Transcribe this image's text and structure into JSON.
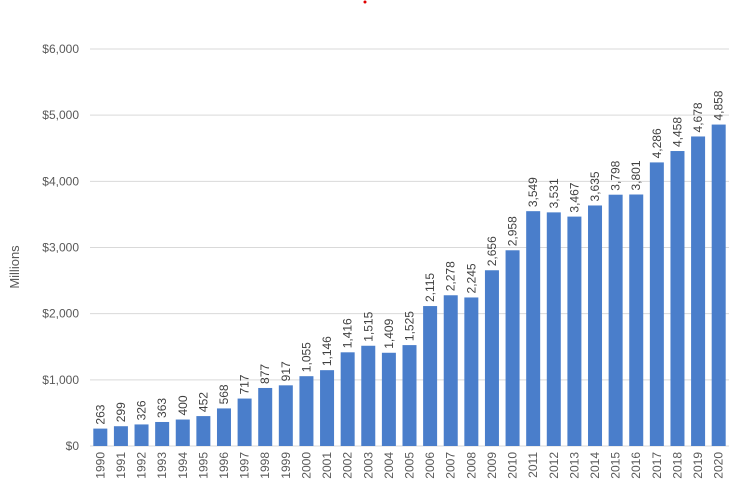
{
  "chart_data": {
    "type": "bar",
    "title": "",
    "xlabel": "",
    "ylabel": "Millions",
    "ylim": [
      0,
      6000
    ],
    "yticks": [
      {
        "value": 0,
        "label": "$0"
      },
      {
        "value": 1000,
        "label": "$1,000"
      },
      {
        "value": 2000,
        "label": "$2,000"
      },
      {
        "value": 3000,
        "label": "$3,000"
      },
      {
        "value": 4000,
        "label": "$4,000"
      },
      {
        "value": 5000,
        "label": "$5,000"
      },
      {
        "value": 6000,
        "label": "$6,000"
      }
    ],
    "grid": true,
    "legend": "none",
    "bar_color": "#4a7ecb",
    "categories": [
      "1990",
      "1991",
      "1992",
      "1993",
      "1994",
      "1995",
      "1996",
      "1997",
      "1998",
      "1999",
      "2000",
      "2001",
      "2002",
      "2003",
      "2004",
      "2005",
      "2006",
      "2007",
      "2008",
      "2009",
      "2010",
      "2011",
      "2012",
      "2013",
      "2014",
      "2015",
      "2016",
      "2017",
      "2018",
      "2019",
      "2020"
    ],
    "values": [
      263,
      299,
      326,
      363,
      400,
      452,
      568,
      717,
      877,
      917,
      1055,
      1146,
      1416,
      1515,
      1409,
      1525,
      2115,
      2278,
      2245,
      2656,
      2958,
      3549,
      3531,
      3467,
      3635,
      3798,
      3801,
      4286,
      4458,
      4678,
      4858
    ],
    "value_labels": [
      "263",
      "299",
      "326",
      "363",
      "400",
      "452",
      "568",
      "717",
      "877",
      "917",
      "1,055",
      "1,146",
      "1,416",
      "1,515",
      "1,409",
      "1,525",
      "2,115",
      "2,278",
      "2,245",
      "2,656",
      "2,958",
      "3,549",
      "3,531",
      "3,467",
      "3,635",
      "3,798",
      "3,801",
      "4,286",
      "4,458",
      "4,678",
      "4,858"
    ]
  }
}
